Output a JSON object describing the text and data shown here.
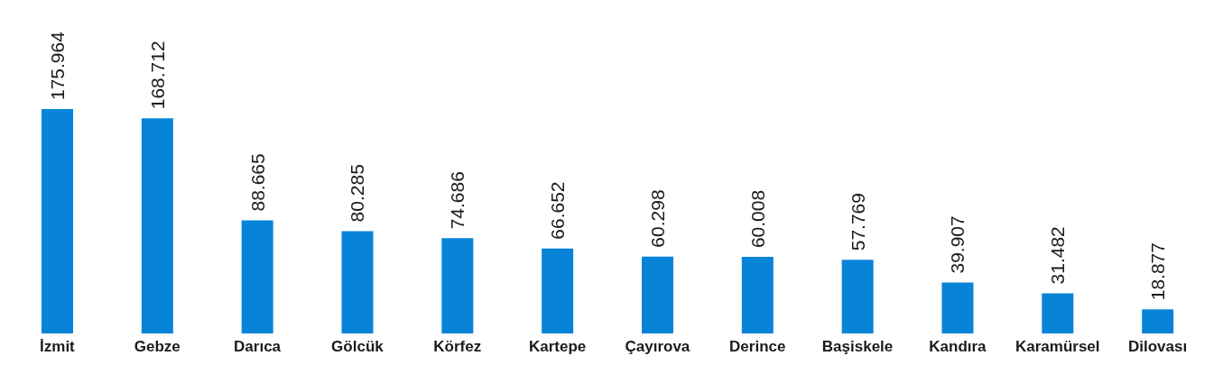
{
  "chart_data": {
    "type": "bar",
    "categories": [
      "İzmit",
      "Gebze",
      "Darıca",
      "Gölcük",
      "Körfez",
      "Kartepe",
      "Çayırova",
      "Derince",
      "Başiskele",
      "Kandıra",
      "Karamürsel",
      "Dilovası"
    ],
    "values": [
      175.964,
      168.712,
      88.665,
      80.285,
      74.686,
      66.652,
      60.298,
      60.008,
      57.769,
      39.907,
      31.482,
      18.877
    ],
    "color": "#0784d8",
    "data_labels": true,
    "tick_labels": "x",
    "grid": false,
    "legend": false
  }
}
